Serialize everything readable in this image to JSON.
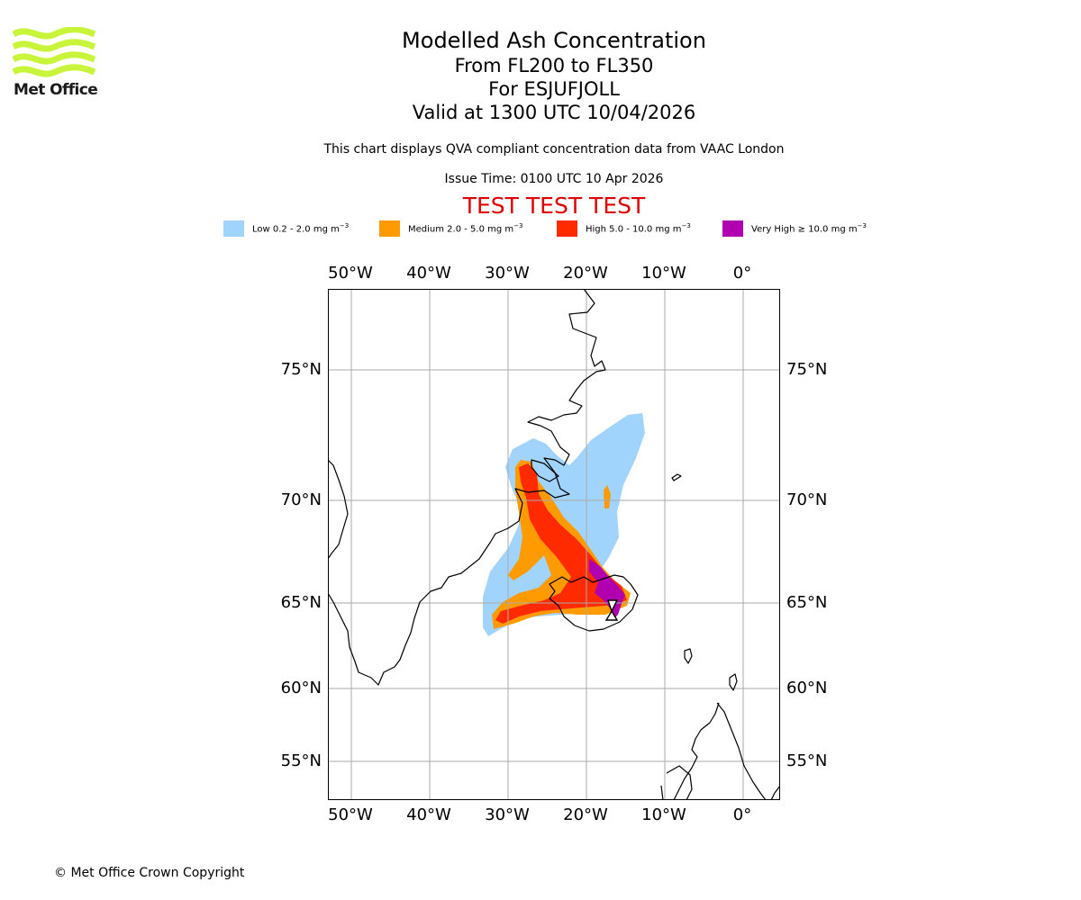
{
  "branding": {
    "logo_text": "Met Office",
    "logo_color": "#c8f53a"
  },
  "header": {
    "title": "Modelled Ash Concentration",
    "level_range": "From FL200 to FL350",
    "volcano": "For ESJUFJOLL",
    "valid_time": "Valid at 1300 UTC 10/04/2026",
    "description": "This chart displays QVA compliant concentration data from VAAC London",
    "issue_time": "Issue Time: 0100 UTC 10 Apr 2026",
    "test_banner": "TEST TEST TEST"
  },
  "legend": [
    {
      "name": "Low",
      "label": "Low 0.2 - 2.0 mg m",
      "exp": "−3",
      "color": "#a1d4fc"
    },
    {
      "name": "Medium",
      "label": "Medium 2.0 - 5.0 mg m",
      "exp": "−3",
      "color": "#ff9a00"
    },
    {
      "name": "High",
      "label": "High 5.0 - 10.0 mg m",
      "exp": "−3",
      "color": "#ff2a00"
    },
    {
      "name": "Very High",
      "label": "Very High ≥ 10.0 mg m",
      "exp": "−3",
      "color": "#b000b0"
    }
  ],
  "map": {
    "lon_ticks": [
      "50°W",
      "40°W",
      "30°W",
      "20°W",
      "10°W",
      "0°"
    ],
    "lat_ticks": [
      "75°N",
      "70°N",
      "65°N",
      "60°N",
      "55°N"
    ],
    "grid_color": "#aaaaaa",
    "coast_color": "#000000"
  },
  "footer": {
    "copyright": "© Met Office Crown Copyright"
  }
}
